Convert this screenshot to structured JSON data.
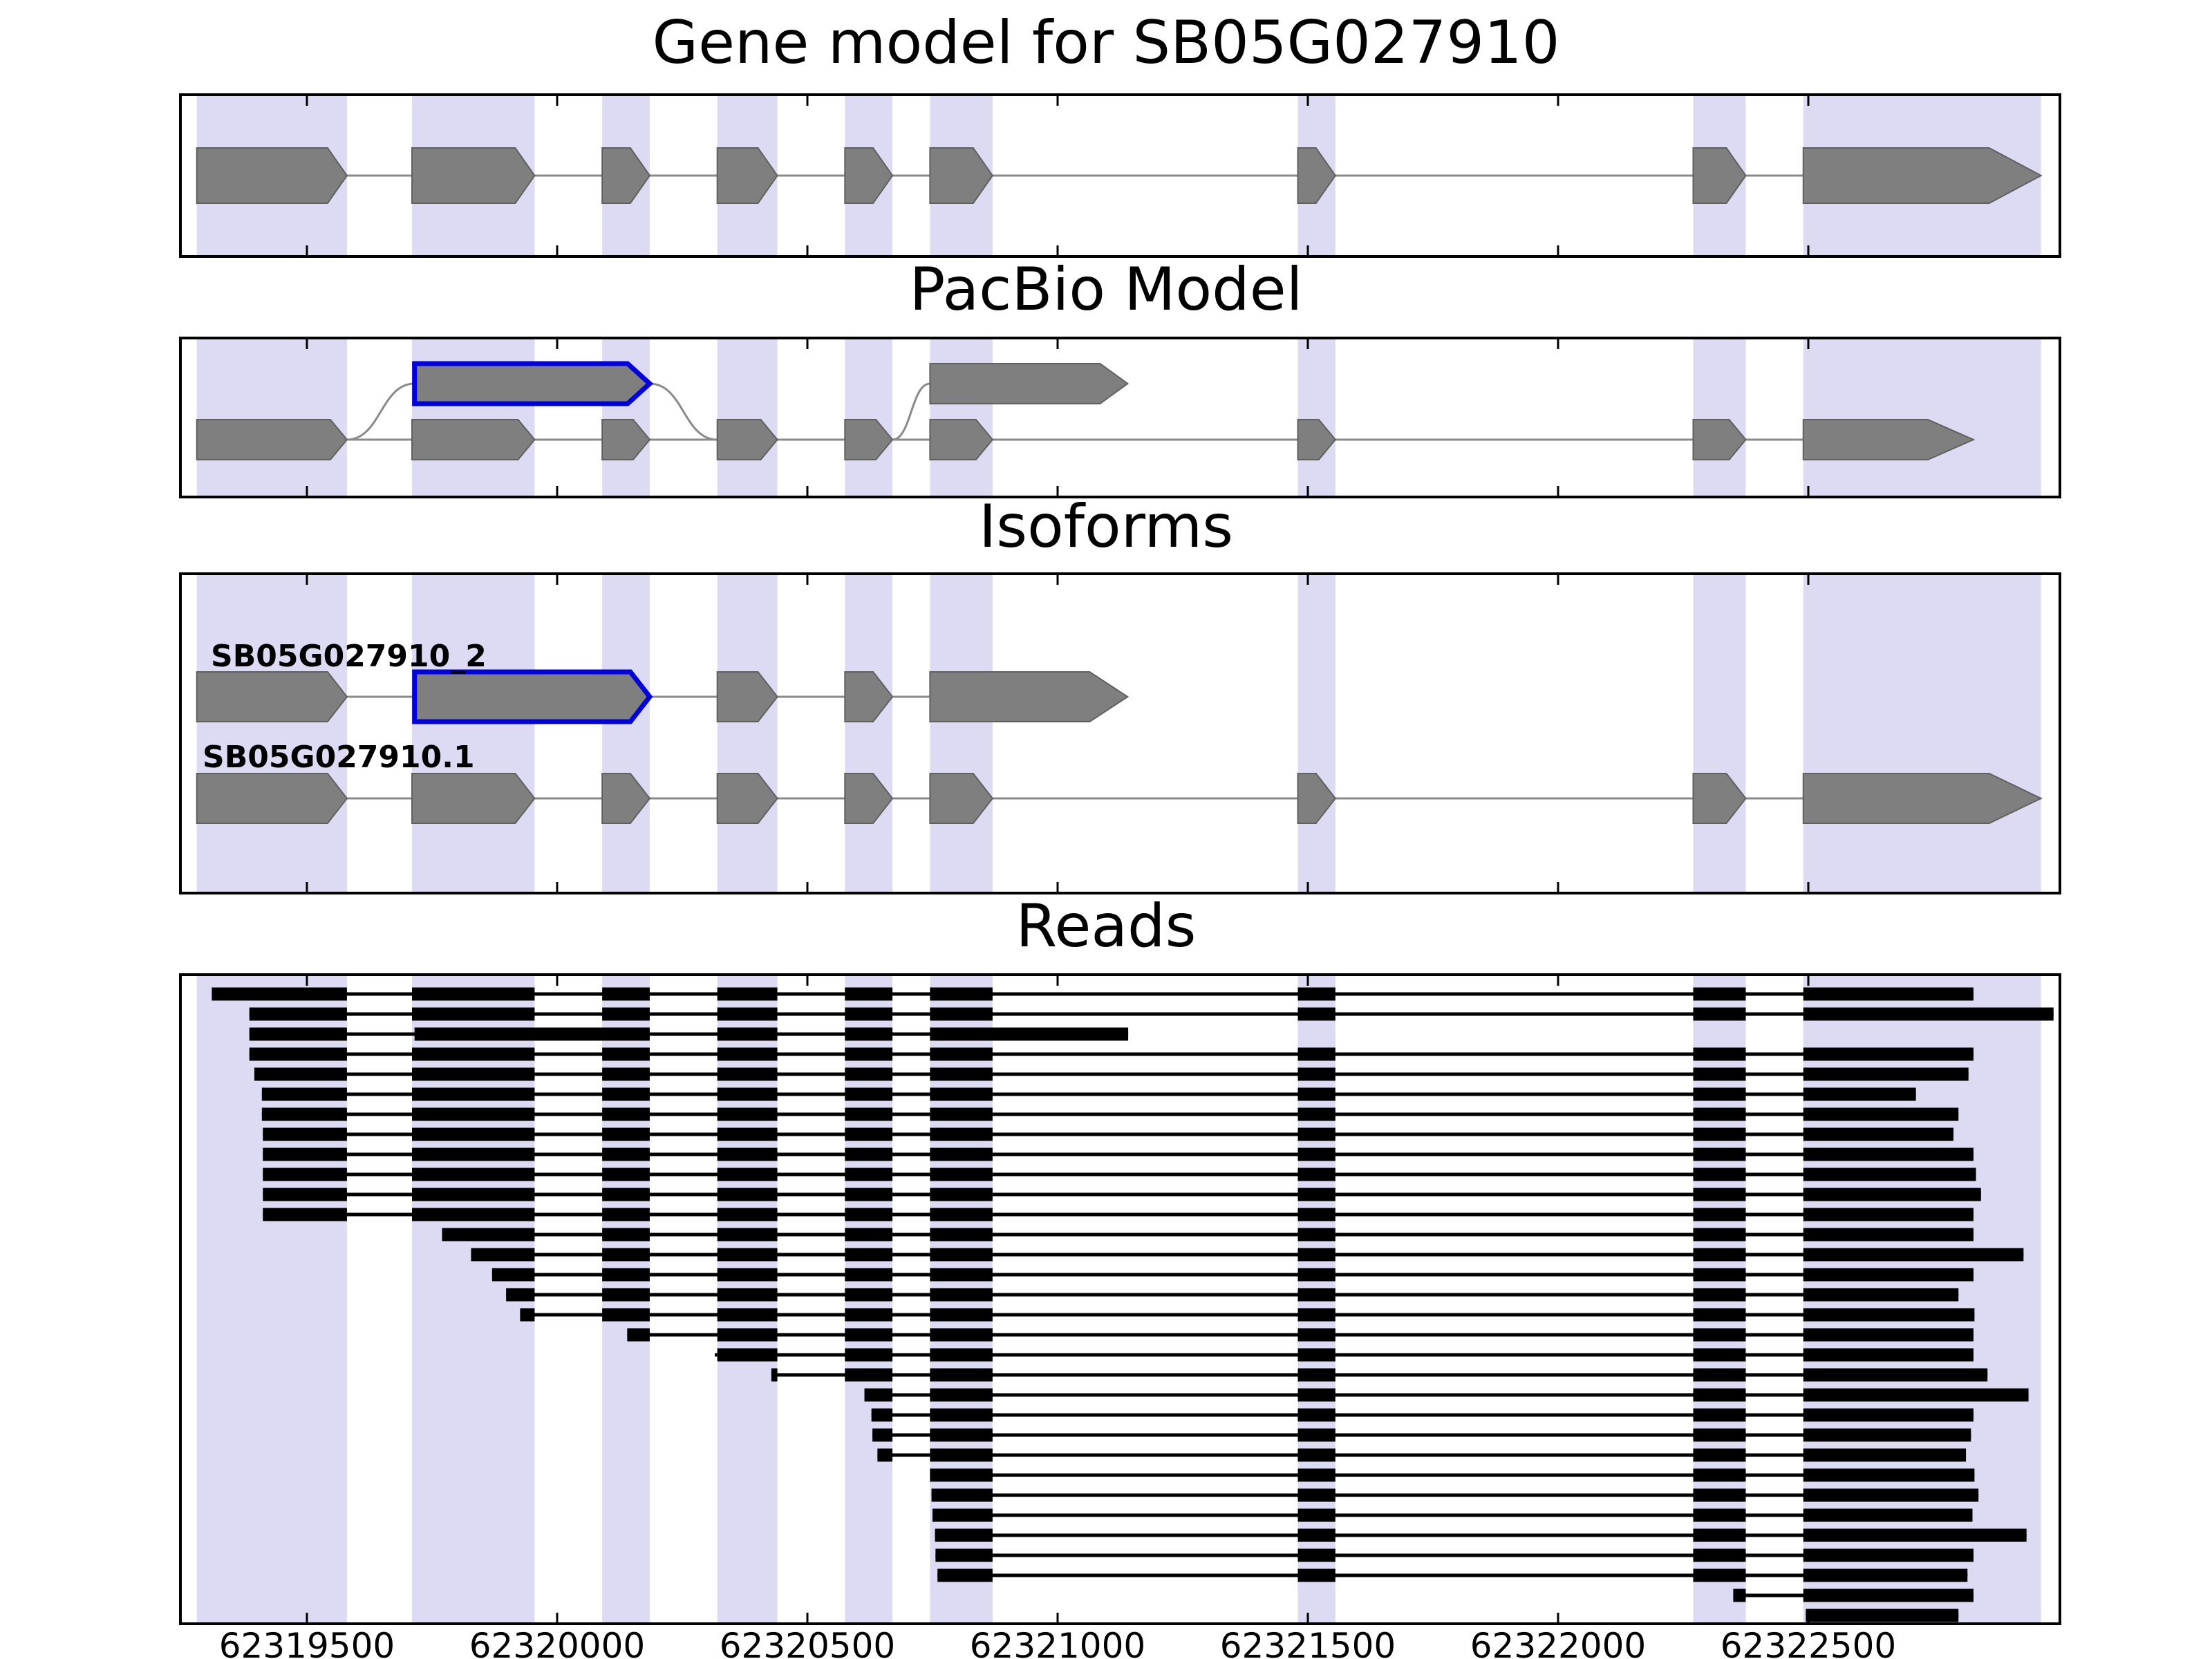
{
  "figure": {
    "titles": {
      "gene_model": "Gene model for SB05G027910",
      "pacbio": "PacBio Model",
      "isoforms": "Isoforms",
      "reads": "Reads"
    }
  },
  "chart_data": {
    "type": "gene-model-browser",
    "gene_id": "SB05G027910",
    "x_axis": {
      "min": 62319250,
      "max": 62323000,
      "ticks": [
        62319500,
        62320000,
        62320500,
        62321000,
        62321500,
        62322000,
        62322500
      ]
    },
    "colors": {
      "band": "#dddaf3",
      "exon_fill": "#7f7f7f",
      "exon_edge": "#606060",
      "novel_edge": "#0000dd",
      "intron_line": "#8a8a8a",
      "read": "#000000",
      "axis": "#000000"
    },
    "bands": [
      [
        62319280,
        62319580
      ],
      [
        62319710,
        62319955
      ],
      [
        62320090,
        62320185
      ],
      [
        62320320,
        62320440
      ],
      [
        62320575,
        62320670
      ],
      [
        62320745,
        62320870
      ],
      [
        62321480,
        62321555
      ],
      [
        62322270,
        62322375
      ],
      [
        62322490,
        62322965
      ]
    ],
    "gene_model": {
      "exons": [
        [
          62319280,
          62319580
        ],
        [
          62319710,
          62319955
        ],
        [
          62320090,
          62320185
        ],
        [
          62320320,
          62320440
        ],
        [
          62320575,
          62320670
        ],
        [
          62320745,
          62320870
        ],
        [
          62321480,
          62321555
        ],
        [
          62322270,
          62322375
        ],
        [
          62322490,
          62322965
        ]
      ]
    },
    "pacbio": {
      "main_exons": [
        [
          62319280,
          62319580
        ],
        [
          62319710,
          62319955
        ],
        [
          62320090,
          62320185
        ],
        [
          62320320,
          62320440
        ],
        [
          62320575,
          62320670
        ],
        [
          62320745,
          62320870
        ],
        [
          62321480,
          62321555
        ],
        [
          62322270,
          62322375
        ],
        [
          62322490,
          62322830
        ]
      ],
      "elevated_exons": [
        {
          "span": [
            62319715,
            62320185
          ],
          "novel": true
        },
        {
          "span": [
            62320745,
            62321140
          ],
          "novel": false
        }
      ],
      "curves": [
        {
          "from": 62319580,
          "to": 62319715,
          "rise": true
        },
        {
          "from": 62320185,
          "to": 62320320,
          "rise": false
        },
        {
          "from": 62320670,
          "to": 62320745,
          "rise": true
        }
      ]
    },
    "isoforms": [
      {
        "label": "SB05G027910_2",
        "exons": [
          [
            62319280,
            62319580
          ],
          [
            62319715,
            62320185
          ],
          [
            62320320,
            62320440
          ],
          [
            62320575,
            62320670
          ],
          [
            62320745,
            62321140
          ]
        ],
        "novel_exon_index": 1
      },
      {
        "label": "SB05G027910.1",
        "exons": [
          [
            62319280,
            62319580
          ],
          [
            62319710,
            62319955
          ],
          [
            62320090,
            62320185
          ],
          [
            62320320,
            62320440
          ],
          [
            62320575,
            62320670
          ],
          [
            62320745,
            62320870
          ],
          [
            62321480,
            62321555
          ],
          [
            62322270,
            62322375
          ],
          [
            62322490,
            62322965
          ]
        ],
        "novel_exon_index": -1
      }
    ],
    "reads": [
      {
        "s": 62319310,
        "e": 62322830,
        "v": "c"
      },
      {
        "s": 62319385,
        "e": 62322990,
        "v": "c"
      },
      {
        "s": 62319385,
        "e": 62321141,
        "v": "i"
      },
      {
        "s": 62319385,
        "e": 62322830,
        "v": "c"
      },
      {
        "s": 62319395,
        "e": 62322820,
        "v": "c"
      },
      {
        "s": 62319410,
        "e": 62322715,
        "v": "c"
      },
      {
        "s": 62319410,
        "e": 62322800,
        "v": "c"
      },
      {
        "s": 62319412,
        "e": 62322790,
        "v": "c"
      },
      {
        "s": 62319412,
        "e": 62322830,
        "v": "c"
      },
      {
        "s": 62319412,
        "e": 62322835,
        "v": "c"
      },
      {
        "s": 62319412,
        "e": 62322845,
        "v": "c"
      },
      {
        "s": 62319412,
        "e": 62322830,
        "v": "c"
      },
      {
        "s": 62319770,
        "e": 62322830,
        "v": "c"
      },
      {
        "s": 62319828,
        "e": 62322930,
        "v": "c"
      },
      {
        "s": 62319870,
        "e": 62322830,
        "v": "c"
      },
      {
        "s": 62319898,
        "e": 62322800,
        "v": "c"
      },
      {
        "s": 62319926,
        "e": 62322832,
        "v": "c"
      },
      {
        "s": 62320140,
        "e": 62322830,
        "v": "c"
      },
      {
        "s": 62320315,
        "e": 62322830,
        "v": "c"
      },
      {
        "s": 62320428,
        "e": 62322858,
        "v": "c"
      },
      {
        "s": 62320614,
        "e": 62322940,
        "v": "c"
      },
      {
        "s": 62320628,
        "e": 62322830,
        "v": "c"
      },
      {
        "s": 62320630,
        "e": 62322825,
        "v": "c"
      },
      {
        "s": 62320640,
        "e": 62322815,
        "v": "c"
      },
      {
        "s": 62320745,
        "e": 62322832,
        "v": "c"
      },
      {
        "s": 62320748,
        "e": 62322840,
        "v": "c"
      },
      {
        "s": 62320750,
        "e": 62322828,
        "v": "c"
      },
      {
        "s": 62320755,
        "e": 62322936,
        "v": "c"
      },
      {
        "s": 62320756,
        "e": 62322830,
        "v": "c"
      },
      {
        "s": 62320760,
        "e": 62322818,
        "v": "c"
      },
      {
        "s": 62322350,
        "e": 62322830,
        "v": "c"
      },
      {
        "s": 62322495,
        "e": 62322800,
        "v": "c"
      }
    ]
  }
}
